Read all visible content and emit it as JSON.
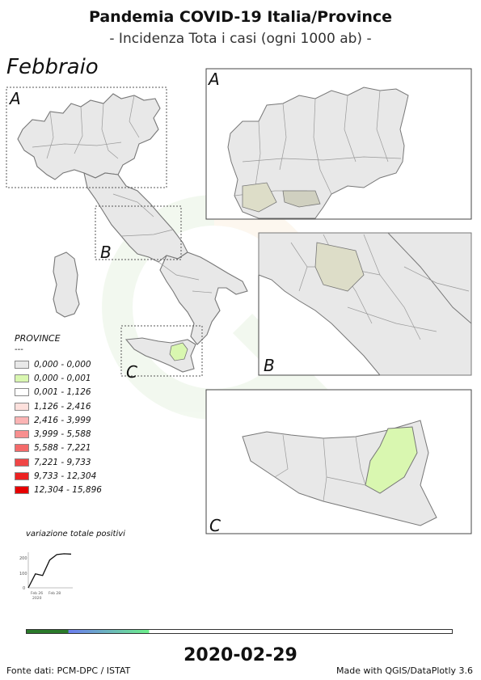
{
  "header": {
    "title": "Pandemia COVID-19 Italia/Province",
    "subtitle": "- Incidenza Tota i casi (ogni 1000 ab) -",
    "month": "Febbraio"
  },
  "insets": {
    "a_label": "A",
    "b_label": "B",
    "c_label": "C"
  },
  "legend": {
    "title": "PROVINCE",
    "subtitle": "---",
    "items": [
      {
        "label": "0,000 - 0,000",
        "color": "#e8e8e8"
      },
      {
        "label": "0,000 - 0,001",
        "color": "#d9f7b0"
      },
      {
        "label": "0,001 - 1,126",
        "color": "#ffffff"
      },
      {
        "label": "1,126 - 2,416",
        "color": "#fde0dc"
      },
      {
        "label": "2,416 - 3,999",
        "color": "#fbb4b4"
      },
      {
        "label": "3,999 - 5,588",
        "color": "#f88f8f"
      },
      {
        "label": "5,588 - 7,221",
        "color": "#f46a6a"
      },
      {
        "label": "7,221 - 9,733",
        "color": "#f04646"
      },
      {
        "label": "9,733 - 12,304",
        "color": "#ec2222"
      },
      {
        "label": "12,304 - 15,896",
        "color": "#e60000"
      }
    ]
  },
  "chart_data": {
    "type": "line",
    "title": "variazione totale positivi",
    "x": [
      "Feb 24",
      "Feb 25",
      "Feb 26",
      "Feb 27",
      "Feb 28",
      "Feb 29",
      "Mar 01"
    ],
    "values": [
      0,
      90,
      80,
      180,
      215,
      220,
      218
    ],
    "xtick_labels": [
      "Feb 26\n2020",
      "Feb 28"
    ],
    "ytick_labels": [
      "0",
      "100",
      "200"
    ],
    "ylim": [
      0,
      230
    ]
  },
  "timeline": {
    "progress": 0.29,
    "colors": {
      "done": "#2a7a2a",
      "window_start": "#6b7cf0",
      "window_end": "#6cf08a"
    }
  },
  "footer": {
    "date": "2020-02-29",
    "source": "Fonte dati: PCM-DPC / ISTAT",
    "credit": "Made with QGIS/DataPlotly 3.6"
  }
}
